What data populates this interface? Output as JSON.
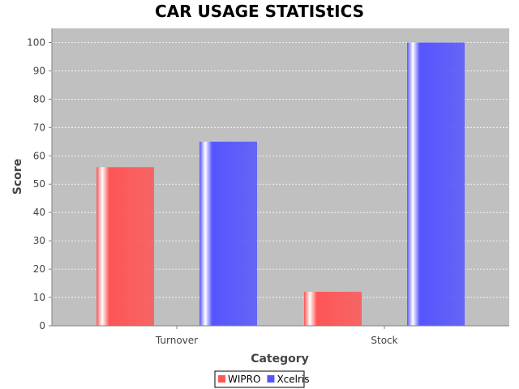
{
  "chart_data": {
    "type": "bar",
    "title": "CAR USAGE STATIStICS",
    "xlabel": "Category",
    "ylabel": "Score",
    "categories": [
      "Turnover",
      "Stock"
    ],
    "series": [
      {
        "name": "WIPRO",
        "values": [
          56,
          12
        ],
        "color": "#ff5555"
      },
      {
        "name": "Xcelris",
        "values": [
          65,
          100
        ],
        "color": "#5555ff"
      }
    ],
    "ylim": [
      0,
      105
    ],
    "yticks": [
      0,
      10,
      20,
      30,
      40,
      50,
      60,
      70,
      80,
      90,
      100
    ],
    "grid": true,
    "legend_position": "bottom-center",
    "plot_background": "#c0c0c0"
  }
}
